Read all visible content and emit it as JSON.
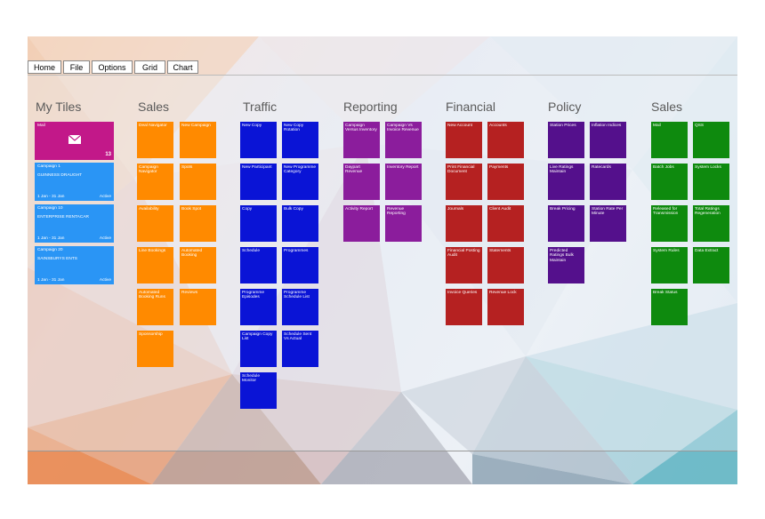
{
  "menu": [
    "Home",
    "File",
    "Options",
    "Grid",
    "Chart"
  ],
  "groups": {
    "my_tiles": {
      "title": "My Tiles",
      "mail": {
        "label": "Mail",
        "count": "13",
        "icon": "mail-icon"
      },
      "campaigns": [
        {
          "line1": "Campaign 1",
          "line2": "GUINNESS DRAUGHT",
          "dates": "1 Jan - 31 Jan",
          "status": "Active"
        },
        {
          "line1": "Campaign 10",
          "line2": "ENTERPRISE RENTACAR",
          "dates": "1 Jan - 31 Jan",
          "status": "Active"
        },
        {
          "line1": "Campaign 20",
          "line2": "SAINSBURYS ENTS",
          "dates": "1 Jan - 31 Jan",
          "status": "Active"
        }
      ]
    },
    "sales": {
      "title": "Sales",
      "tiles": [
        "Deal Navigator",
        "New Campaign",
        "Campaign Navigator",
        "Spots",
        "Availability",
        "Book Spot",
        "Line Bookings",
        "Automated Booking",
        "Automated Booking Runs",
        "Reviews",
        "Sponsorship"
      ]
    },
    "traffic": {
      "title": "Traffic",
      "tiles": [
        "New Copy",
        "New Copy Rotation",
        "New Participant",
        "New Programme Category",
        "Copy",
        "Bulk Copy",
        "Schedule",
        "Programmes",
        "Programme Episodes",
        "Programme Schedule List",
        "Campaign Copy List",
        "Schedule Sent Vs Actual",
        "Schedule Monitor"
      ]
    },
    "reporting": {
      "title": "Reporting",
      "tiles": [
        "Campaign Versus Inventory",
        "Campaign Vs Invoice Revenue",
        "Daypart Revenue",
        "Inventory Report",
        "Activity Report",
        "Revenue Reporting"
      ]
    },
    "financial": {
      "title": "Financial",
      "tiles": [
        "New Account",
        "Accounts",
        "Print Financial Document",
        "Payments",
        "Journals",
        "Client Audit",
        "Financial Posting Audit",
        "Statements",
        "Invoice Queries",
        "Revenue Lock"
      ]
    },
    "policy": {
      "title": "Policy",
      "tiles": [
        "Station Prices",
        "Inflation Indices",
        "Live Ratings Maintain",
        "Ratecards",
        "Break Pricing",
        "Station Rate Per Minute",
        "Predicted Ratings Bulk Maintain"
      ]
    },
    "sales2": {
      "title": "Sales",
      "tiles": [
        "Mail",
        "QSS",
        "Batch Jobs",
        "System Locks",
        "Released for Transmission",
        "Total Ratings Regeneration",
        "System Rules",
        "Data Extract",
        "Break Status"
      ]
    }
  },
  "colors": {
    "sales": "#ff8a00",
    "traffic": "#0a14d6",
    "reporting": "#8b1d9c",
    "financial": "#b52121",
    "policy": "#54108c",
    "sales2": "#0e8a0e",
    "campaign": "#2a95f5",
    "mail": "#c21889"
  }
}
